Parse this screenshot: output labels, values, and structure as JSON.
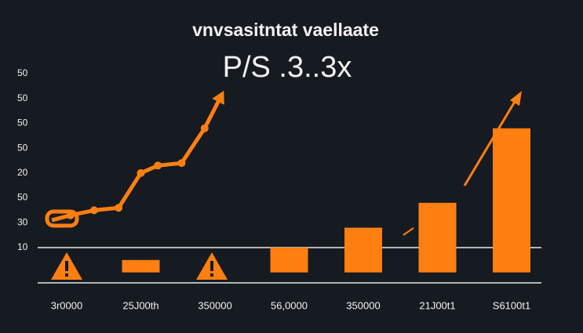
{
  "chart_data": {
    "type": "bar",
    "title": "vnvsasitntat vaellaate",
    "subtitle": "P/S .3..3x",
    "categories": [
      "3r0000",
      "25J00th",
      "350000",
      "56,0000",
      "350000",
      "21J00t1",
      "S6100t1"
    ],
    "values": [
      null,
      0.5,
      null,
      1.0,
      1.8,
      2.8,
      5.8
    ],
    "color": "#ff7f11",
    "line": {
      "x": [
        -0.2,
        0.05,
        0.37,
        0.7,
        1.0,
        1.23,
        1.55,
        1.86,
        2.1
      ],
      "values": [
        2.1,
        2.3,
        2.5,
        2.6,
        4.0,
        4.3,
        4.4,
        5.8,
        7.2
      ]
    },
    "xlim": [
      -0.5,
      6.5
    ],
    "ylim": [
      -0.42,
      8.03
    ],
    "yticks": [
      {
        "value": 8,
        "label": "50"
      },
      {
        "value": 7,
        "label": "50"
      },
      {
        "value": 6,
        "label": "50"
      },
      {
        "value": 5,
        "label": "50"
      },
      {
        "value": 4,
        "label": "20"
      },
      {
        "value": 3,
        "label": "50"
      },
      {
        "value": 2,
        "label": "30"
      },
      {
        "value": 1,
        "label": "10"
      }
    ],
    "grid_at": 1
  }
}
